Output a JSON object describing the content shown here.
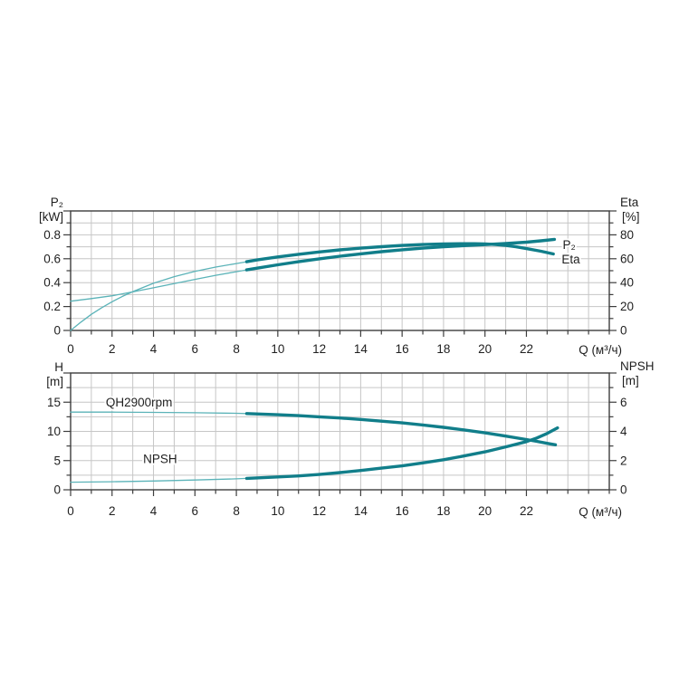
{
  "page": {
    "background": "#ffffff"
  },
  "palette": {
    "curve_thin": "#5bb3b8",
    "curve_thick": "#117e8a",
    "grid": "#c6c6c6",
    "axis": "#3d3d3d",
    "text": "#1f1f1f"
  },
  "chart_data": [
    {
      "name": "p2-eta-chart",
      "type": "line",
      "x_axis": {
        "label": "Q (м³/ч)",
        "min": 0,
        "max": 26,
        "tick_step": 1,
        "grid": true,
        "tick_labels": [
          [
            0,
            "0"
          ],
          [
            2,
            "2"
          ],
          [
            4,
            "4"
          ],
          [
            6,
            "6"
          ],
          [
            8,
            "8"
          ],
          [
            10,
            "10"
          ],
          [
            12,
            "12"
          ],
          [
            14,
            "14"
          ],
          [
            16,
            "16"
          ],
          [
            18,
            "18"
          ],
          [
            20,
            "20"
          ],
          [
            22,
            "22"
          ]
        ]
      },
      "y_left": {
        "header": [
          "P₂",
          "[kW]"
        ],
        "min": 0,
        "max": 1.0,
        "tick_step": 0.1,
        "major_step": 0.2,
        "grid": true,
        "tick_labels": [
          [
            0,
            "0"
          ],
          [
            0.2,
            "0.2"
          ],
          [
            0.4,
            "0.4"
          ],
          [
            0.6,
            "0.6"
          ],
          [
            0.8,
            "0.8"
          ]
        ]
      },
      "y_right": {
        "header": [
          "Eta",
          "[%]"
        ],
        "min": 0,
        "max": 100,
        "tick_step": 10,
        "major_step": 20,
        "tick_labels": [
          [
            0,
            "0"
          ],
          [
            20,
            "20"
          ],
          [
            40,
            "40"
          ],
          [
            60,
            "60"
          ],
          [
            80,
            "80"
          ]
        ]
      },
      "series": [
        {
          "name": "P2",
          "label": "P₂",
          "axis": "left",
          "split_at": 8.5,
          "label_pos": [
            23.75,
            0.715
          ],
          "points": [
            [
              0,
              0.245
            ],
            [
              1,
              0.267
            ],
            [
              2,
              0.29
            ],
            [
              3,
              0.323
            ],
            [
              4,
              0.357
            ],
            [
              5,
              0.392
            ],
            [
              6,
              0.427
            ],
            [
              7,
              0.461
            ],
            [
              8,
              0.492
            ],
            [
              8.5,
              0.507
            ],
            [
              9,
              0.521
            ],
            [
              10,
              0.549
            ],
            [
              11,
              0.575
            ],
            [
              12,
              0.599
            ],
            [
              13,
              0.621
            ],
            [
              14,
              0.641
            ],
            [
              15,
              0.659
            ],
            [
              16,
              0.675
            ],
            [
              17,
              0.689
            ],
            [
              18,
              0.701
            ],
            [
              19,
              0.71
            ],
            [
              20,
              0.718
            ],
            [
              21,
              0.727
            ],
            [
              22,
              0.739
            ],
            [
              22.7,
              0.75
            ],
            [
              23.35,
              0.762
            ]
          ]
        },
        {
          "name": "Eta",
          "label": "Eta",
          "axis": "right",
          "split_at": 8.5,
          "label_pos": [
            23.7,
            59.5
          ],
          "points": [
            [
              0,
              0
            ],
            [
              0.5,
              7
            ],
            [
              1,
              13.5
            ],
            [
              1.5,
              19
            ],
            [
              2,
              24
            ],
            [
              2.5,
              28.5
            ],
            [
              3,
              32.5
            ],
            [
              4,
              39.5
            ],
            [
              5,
              45
            ],
            [
              6,
              49.5
            ],
            [
              7,
              53
            ],
            [
              8,
              56
            ],
            [
              8.5,
              57.5
            ],
            [
              9,
              59
            ],
            [
              10,
              61.5
            ],
            [
              11,
              63.7
            ],
            [
              12,
              65.7
            ],
            [
              13,
              67.4
            ],
            [
              14,
              68.9
            ],
            [
              15,
              70.1
            ],
            [
              16,
              71.1
            ],
            [
              17,
              71.9
            ],
            [
              18,
              72.4
            ],
            [
              19,
              72.6
            ],
            [
              19.5,
              72.6
            ],
            [
              20,
              72.4
            ],
            [
              20.5,
              71.9
            ],
            [
              21,
              71.1
            ],
            [
              21.5,
              70
            ],
            [
              22,
              68.5
            ],
            [
              22.7,
              66.3
            ],
            [
              23.3,
              64
            ]
          ]
        }
      ]
    },
    {
      "name": "qh-npsh-chart",
      "type": "line",
      "x_axis": {
        "label": "Q (м³/ч)",
        "min": 0,
        "max": 26,
        "tick_step": 1,
        "grid": true,
        "tick_labels": [
          [
            0,
            "0"
          ],
          [
            2,
            "2"
          ],
          [
            4,
            "4"
          ],
          [
            6,
            "6"
          ],
          [
            8,
            "8"
          ],
          [
            10,
            "10"
          ],
          [
            12,
            "12"
          ],
          [
            14,
            "14"
          ],
          [
            16,
            "16"
          ],
          [
            18,
            "18"
          ],
          [
            20,
            "20"
          ],
          [
            22,
            "22"
          ]
        ]
      },
      "y_left": {
        "header": [
          "H",
          "[m]"
        ],
        "min": 0,
        "max": 20,
        "tick_step": 2.5,
        "major_step": 5,
        "grid": true,
        "tick_labels": [
          [
            0,
            "0"
          ],
          [
            5,
            "5"
          ],
          [
            10,
            "10"
          ],
          [
            15,
            "15"
          ]
        ]
      },
      "y_right": {
        "header": [
          "NPSH",
          "[m]"
        ],
        "min": 0,
        "max": 8,
        "tick_step": 1,
        "major_step": 2,
        "tick_labels": [
          [
            0,
            "0"
          ],
          [
            2,
            "2"
          ],
          [
            4,
            "4"
          ],
          [
            6,
            "6"
          ]
        ]
      },
      "series": [
        {
          "name": "QH",
          "label": "QH2900rpm",
          "axis": "left",
          "split_at": 8.5,
          "label_pos": [
            1.7,
            15.0
          ],
          "points": [
            [
              0,
              13.3
            ],
            [
              2,
              13.3
            ],
            [
              4,
              13.25
            ],
            [
              6,
              13.2
            ],
            [
              8,
              13.1
            ],
            [
              8.5,
              13.05
            ],
            [
              10,
              12.85
            ],
            [
              11,
              12.7
            ],
            [
              12,
              12.5
            ],
            [
              13,
              12.3
            ],
            [
              14,
              12.05
            ],
            [
              15,
              11.75
            ],
            [
              16,
              11.45
            ],
            [
              17,
              11.1
            ],
            [
              18,
              10.7
            ],
            [
              19,
              10.25
            ],
            [
              20,
              9.75
            ],
            [
              21,
              9.2
            ],
            [
              22,
              8.6
            ],
            [
              22.5,
              8.3
            ],
            [
              23,
              7.95
            ],
            [
              23.4,
              7.7
            ]
          ]
        },
        {
          "name": "NPSH",
          "label": "NPSH",
          "axis": "right",
          "split_at": 8.5,
          "label_pos": [
            3.5,
            2.1
          ],
          "points": [
            [
              0,
              0.52
            ],
            [
              2,
              0.55
            ],
            [
              4,
              0.6
            ],
            [
              6,
              0.67
            ],
            [
              8,
              0.75
            ],
            [
              8.5,
              0.78
            ],
            [
              10,
              0.88
            ],
            [
              11,
              0.95
            ],
            [
              12,
              1.05
            ],
            [
              13,
              1.18
            ],
            [
              14,
              1.32
            ],
            [
              15,
              1.48
            ],
            [
              16,
              1.64
            ],
            [
              17,
              1.84
            ],
            [
              18,
              2.06
            ],
            [
              19,
              2.32
            ],
            [
              20,
              2.6
            ],
            [
              21,
              2.94
            ],
            [
              22,
              3.3
            ],
            [
              22.5,
              3.55
            ],
            [
              23,
              3.86
            ],
            [
              23.5,
              4.24
            ]
          ]
        }
      ]
    }
  ]
}
